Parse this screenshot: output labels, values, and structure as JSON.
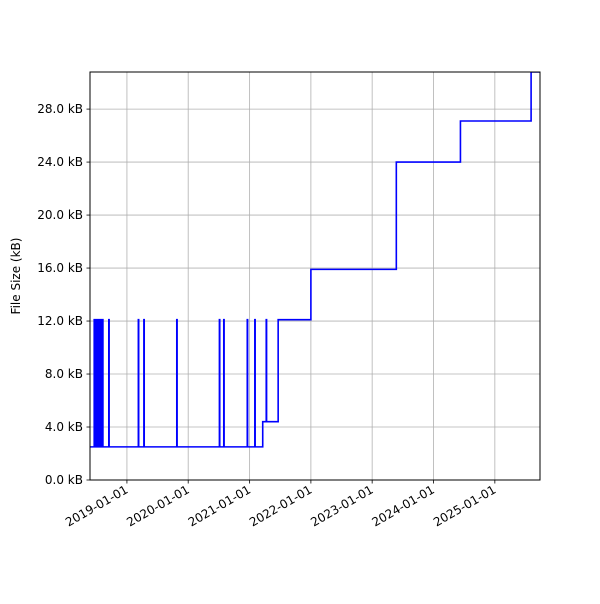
{
  "chart_data": {
    "type": "line",
    "title": "",
    "xlabel": "",
    "ylabel": "File Size (kB)",
    "xlim": [
      "2018-05-26",
      "2025-09-27"
    ],
    "ylim": [
      0,
      30.8
    ],
    "y_ticks": [
      0,
      4,
      8,
      12,
      16,
      20,
      24,
      28
    ],
    "y_tick_labels": [
      "0.0 kB",
      "4.0 kB",
      "8.0 kB",
      "12.0 kB",
      "16.0 kB",
      "20.0 kB",
      "24.0 kB",
      "28.0 kB"
    ],
    "x_ticks": [
      "2019-01-01",
      "2020-01-01",
      "2021-01-01",
      "2022-01-01",
      "2023-01-01",
      "2024-01-01",
      "2025-01-01"
    ],
    "x_tick_labels": [
      "2019-01-01",
      "2020-01-01",
      "2021-01-01",
      "2022-01-01",
      "2023-01-01",
      "2024-01-01",
      "2025-01-01"
    ],
    "grid": true,
    "series_color": "#0000ff",
    "series": [
      {
        "step": "post",
        "x": [
          "2018-05-26",
          "2018-06-20",
          "2018-06-24",
          "2018-06-28",
          "2018-07-02",
          "2018-07-06",
          "2018-07-10",
          "2018-07-14",
          "2018-07-18",
          "2018-07-22",
          "2018-07-26",
          "2018-07-30",
          "2018-08-03",
          "2018-08-07",
          "2018-08-11",
          "2018-09-15",
          "2018-09-17",
          "2019-03-10",
          "2019-03-12",
          "2019-04-12",
          "2019-04-14",
          "2019-10-25",
          "2019-10-27",
          "2020-07-05",
          "2020-07-07",
          "2020-07-31",
          "2020-08-02",
          "2020-12-18",
          "2020-12-20",
          "2021-02-01",
          "2021-02-03",
          "2021-03-20",
          "2021-04-10",
          "2021-04-12",
          "2021-06-20",
          "2022-01-01",
          "2023-05-25",
          "2024-06-10",
          "2025-08-05",
          "2025-09-27"
        ],
        "values": [
          2.5,
          12.1,
          2.5,
          12.1,
          2.5,
          12.1,
          2.5,
          12.1,
          2.5,
          12.1,
          2.5,
          12.1,
          2.5,
          12.1,
          2.5,
          12.1,
          2.5,
          12.1,
          2.5,
          12.1,
          2.5,
          12.1,
          2.5,
          12.1,
          2.5,
          12.1,
          2.5,
          12.1,
          2.5,
          12.1,
          2.5,
          4.4,
          12.1,
          4.4,
          12.1,
          15.9,
          24.0,
          27.1,
          30.8,
          30.8
        ]
      }
    ]
  }
}
